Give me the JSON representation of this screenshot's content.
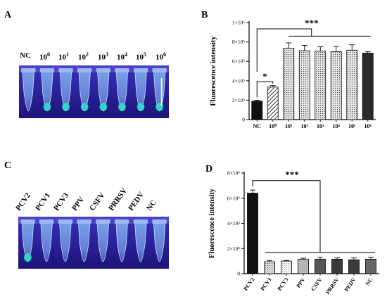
{
  "panels": {
    "a": {
      "letter": "A",
      "tube_labels": [
        {
          "text": "NC",
          "sup": ""
        },
        {
          "text": "10",
          "sup": "0"
        },
        {
          "text": "10",
          "sup": "1"
        },
        {
          "text": "10",
          "sup": "2"
        },
        {
          "text": "10",
          "sup": "3"
        },
        {
          "text": "10",
          "sup": "4"
        },
        {
          "text": "10",
          "sup": "5"
        },
        {
          "text": "10",
          "sup": "6"
        }
      ]
    },
    "b": {
      "letter": "B"
    },
    "c": {
      "letter": "C",
      "tube_labels": [
        "PCV2",
        "PCV1",
        "PCV3",
        "PPV",
        "CSFV",
        "PRRSV",
        "PEDV",
        "NC"
      ]
    },
    "d": {
      "letter": "D"
    }
  },
  "colors": {
    "photo_bg": "#2a1fa0",
    "tube_glow_blue": "#8fb8f0",
    "tube_glow_teal": "#2fe0c8",
    "bar_black": "#111111",
    "bar_dark_gray": "#555555",
    "bar_gray": "#888888"
  },
  "chart_data": [
    {
      "type": "bar",
      "panel": "B",
      "ylabel": "Fluorescence intensity",
      "ylim": [
        0,
        1000000
      ],
      "yticks": [
        0,
        200000,
        400000,
        600000,
        800000,
        1000000
      ],
      "ytick_labels": [
        "0",
        "2×10⁵",
        "4×10⁵",
        "6×10⁵",
        "8×10⁵",
        "1×10⁶"
      ],
      "categories": [
        "NC",
        "10⁰",
        "10¹",
        "10²",
        "10³",
        "10⁴",
        "10⁵",
        "10⁶"
      ],
      "values": [
        190000,
        335000,
        735000,
        710000,
        705000,
        700000,
        715000,
        685000
      ],
      "errors": [
        10000,
        15000,
        55000,
        55000,
        45000,
        55000,
        55000,
        15000
      ],
      "patterns": [
        "solid-black",
        "hatch",
        "dots",
        "dots",
        "dots",
        "dots",
        "dots",
        "solid-dark"
      ],
      "significance": [
        {
          "label": "*",
          "from": 0,
          "to": 1
        },
        {
          "label": "***",
          "from": 0,
          "to": 7
        }
      ]
    },
    {
      "type": "bar",
      "panel": "D",
      "ylabel": "Fluorescence intensity",
      "ylim": [
        0,
        800000
      ],
      "yticks": [
        0,
        200000,
        400000,
        600000,
        800000
      ],
      "ytick_labels": [
        "0",
        "2×10⁵",
        "4×10⁵",
        "6×10⁵",
        "8×10⁵"
      ],
      "categories": [
        "PCV2",
        "PCV1",
        "PCV3",
        "PPV",
        "CSFV",
        "PRRSV",
        "PEDV",
        "NC"
      ],
      "values": [
        640000,
        95000,
        100000,
        115000,
        115000,
        115000,
        110000,
        115000
      ],
      "errors": [
        25000,
        10000,
        5000,
        8000,
        15000,
        10000,
        15000,
        15000
      ],
      "patterns": [
        "solid-black",
        "dots",
        "dots-light",
        "light-gray",
        "gray",
        "dark",
        "dark",
        "gray-mid"
      ],
      "significance": [
        {
          "label": "***",
          "from": 0,
          "to": 4
        }
      ]
    }
  ]
}
